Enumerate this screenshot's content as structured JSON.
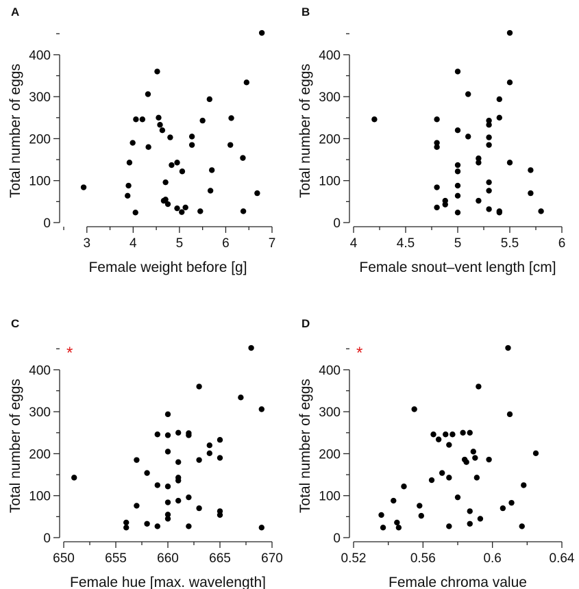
{
  "chart_data": [
    {
      "panel": "A",
      "type": "scatter",
      "xlabel": "Female weight before [g]",
      "ylabel": "Total number of eggs",
      "xlim": [
        2.5,
        7.0
      ],
      "ylim": [
        0,
        470
      ],
      "xticks": [
        3,
        4,
        5,
        6,
        7
      ],
      "yticks": [
        0,
        100,
        200,
        300,
        400
      ],
      "xticks_minor": [
        2.5,
        3.5,
        4.5,
        5.5,
        6.5
      ],
      "yticks_minor": [
        50,
        150,
        250,
        350,
        450
      ],
      "significant": "",
      "points": [
        [
          2.93,
          84
        ],
        [
          3.88,
          64
        ],
        [
          3.9,
          88
        ],
        [
          3.92,
          143
        ],
        [
          3.99,
          190
        ],
        [
          4.05,
          24
        ],
        [
          4.06,
          246
        ],
        [
          4.2,
          246
        ],
        [
          4.32,
          306
        ],
        [
          4.33,
          180
        ],
        [
          4.52,
          360
        ],
        [
          4.55,
          250
        ],
        [
          4.58,
          233
        ],
        [
          4.63,
          220
        ],
        [
          4.66,
          52
        ],
        [
          4.7,
          96
        ],
        [
          4.7,
          55
        ],
        [
          4.75,
          44
        ],
        [
          4.8,
          203
        ],
        [
          4.83,
          137
        ],
        [
          4.95,
          143
        ],
        [
          4.95,
          34
        ],
        [
          5.05,
          25
        ],
        [
          5.06,
          122
        ],
        [
          5.13,
          36
        ],
        [
          5.27,
          205
        ],
        [
          5.27,
          185
        ],
        [
          5.45,
          27
        ],
        [
          5.5,
          243
        ],
        [
          5.65,
          294
        ],
        [
          5.67,
          76
        ],
        [
          5.7,
          125
        ],
        [
          6.1,
          185
        ],
        [
          6.12,
          249
        ],
        [
          6.37,
          154
        ],
        [
          6.38,
          27
        ],
        [
          6.45,
          334
        ],
        [
          6.68,
          70
        ],
        [
          6.78,
          452
        ]
      ]
    },
    {
      "panel": "B",
      "type": "scatter",
      "xlabel": "Female snout–vent length [cm]",
      "ylabel": "Total number of eggs",
      "xlim": [
        4.0,
        6.0
      ],
      "ylim": [
        0,
        470
      ],
      "xticks": [
        4,
        4.5,
        5,
        5.5,
        6
      ],
      "yticks": [
        0,
        100,
        200,
        300,
        400
      ],
      "xticks_minor": [
        4.25,
        4.75,
        5.25,
        5.75
      ],
      "yticks_minor": [
        50,
        150,
        250,
        350,
        450
      ],
      "significant": "",
      "points": [
        [
          4.2,
          246
        ],
        [
          4.8,
          246
        ],
        [
          4.8,
          190
        ],
        [
          4.8,
          180
        ],
        [
          4.8,
          84
        ],
        [
          4.8,
          36
        ],
        [
          4.88,
          52
        ],
        [
          4.88,
          43
        ],
        [
          5.0,
          360
        ],
        [
          5.0,
          220
        ],
        [
          5.0,
          137
        ],
        [
          5.0,
          122
        ],
        [
          5.0,
          88
        ],
        [
          5.0,
          64
        ],
        [
          5.0,
          24
        ],
        [
          5.1,
          306
        ],
        [
          5.1,
          205
        ],
        [
          5.2,
          153
        ],
        [
          5.2,
          143
        ],
        [
          5.2,
          52
        ],
        [
          5.3,
          243
        ],
        [
          5.3,
          233
        ],
        [
          5.3,
          203
        ],
        [
          5.3,
          185
        ],
        [
          5.3,
          96
        ],
        [
          5.3,
          76
        ],
        [
          5.3,
          32
        ],
        [
          5.4,
          294
        ],
        [
          5.4,
          250
        ],
        [
          5.4,
          27
        ],
        [
          5.4,
          24
        ],
        [
          5.5,
          452
        ],
        [
          5.5,
          334
        ],
        [
          5.5,
          143
        ],
        [
          5.7,
          125
        ],
        [
          5.7,
          70
        ],
        [
          5.8,
          27
        ]
      ]
    },
    {
      "panel": "C",
      "type": "scatter",
      "xlabel": "Female hue [max. wavelength]",
      "ylabel": "Total number of eggs",
      "xlim": [
        650,
        670
      ],
      "ylim": [
        0,
        470
      ],
      "xticks": [
        650,
        655,
        660,
        665,
        670
      ],
      "yticks": [
        0,
        100,
        200,
        300,
        400
      ],
      "xticks_minor": [
        652.5,
        657.5,
        662.5,
        667.5
      ],
      "yticks_minor": [
        50,
        150,
        250,
        350,
        450
      ],
      "significant": "*",
      "points": [
        [
          651,
          143
        ],
        [
          656,
          36
        ],
        [
          656,
          24
        ],
        [
          657,
          185
        ],
        [
          657,
          76
        ],
        [
          658,
          154
        ],
        [
          658,
          33
        ],
        [
          659,
          246
        ],
        [
          659,
          125
        ],
        [
          659,
          27
        ],
        [
          660,
          294
        ],
        [
          660,
          244
        ],
        [
          660,
          205
        ],
        [
          660,
          122
        ],
        [
          660,
          84
        ],
        [
          660,
          55
        ],
        [
          660,
          45
        ],
        [
          661,
          250
        ],
        [
          661,
          180
        ],
        [
          661,
          143
        ],
        [
          661,
          136
        ],
        [
          661,
          88
        ],
        [
          662,
          249
        ],
        [
          662,
          244
        ],
        [
          662,
          96
        ],
        [
          662,
          27
        ],
        [
          663,
          360
        ],
        [
          663,
          185
        ],
        [
          663,
          70
        ],
        [
          664,
          220
        ],
        [
          664,
          201
        ],
        [
          665,
          233
        ],
        [
          665,
          190
        ],
        [
          665,
          63
        ],
        [
          665,
          54
        ],
        [
          667,
          334
        ],
        [
          668,
          452
        ],
        [
          669,
          306
        ],
        [
          669,
          24
        ]
      ]
    },
    {
      "panel": "D",
      "type": "scatter",
      "xlabel": "Female chroma value",
      "ylabel": "Total number of eggs",
      "xlim": [
        0.52,
        0.64
      ],
      "ylim": [
        0,
        470
      ],
      "xticks": [
        0.52,
        0.56,
        0.6,
        0.64
      ],
      "xtick_labels": [
        "0.52",
        "0.56",
        "0.6",
        "0.64"
      ],
      "yticks": [
        0,
        100,
        200,
        300,
        400
      ],
      "xticks_minor": [
        0.54,
        0.58,
        0.62
      ],
      "yticks_minor": [
        50,
        150,
        250,
        350,
        450
      ],
      "significant": "*",
      "points": [
        [
          0.536,
          54
        ],
        [
          0.537,
          24
        ],
        [
          0.543,
          88
        ],
        [
          0.545,
          36
        ],
        [
          0.546,
          24
        ],
        [
          0.549,
          122
        ],
        [
          0.555,
          306
        ],
        [
          0.558,
          76
        ],
        [
          0.559,
          52
        ],
        [
          0.565,
          137
        ],
        [
          0.566,
          246
        ],
        [
          0.569,
          234
        ],
        [
          0.571,
          154
        ],
        [
          0.573,
          246
        ],
        [
          0.575,
          221
        ],
        [
          0.575,
          143
        ],
        [
          0.575,
          27
        ],
        [
          0.577,
          246
        ],
        [
          0.58,
          96
        ],
        [
          0.583,
          250
        ],
        [
          0.584,
          186
        ],
        [
          0.585,
          180
        ],
        [
          0.587,
          250
        ],
        [
          0.587,
          63
        ],
        [
          0.587,
          33
        ],
        [
          0.589,
          205
        ],
        [
          0.59,
          190
        ],
        [
          0.591,
          143
        ],
        [
          0.592,
          360
        ],
        [
          0.593,
          45
        ],
        [
          0.598,
          186
        ],
        [
          0.606,
          70
        ],
        [
          0.609,
          452
        ],
        [
          0.61,
          294
        ],
        [
          0.611,
          83
        ],
        [
          0.617,
          27
        ],
        [
          0.618,
          125
        ],
        [
          0.625,
          201
        ]
      ]
    }
  ]
}
